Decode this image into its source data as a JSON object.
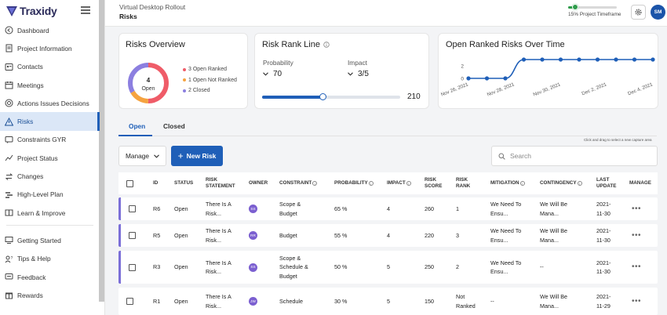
{
  "app": {
    "name": "Traxidy"
  },
  "sidebar": {
    "items": [
      {
        "label": "Dashboard",
        "icon": "dashboard-icon"
      },
      {
        "label": "Project Information",
        "icon": "document-icon"
      },
      {
        "label": "Contacts",
        "icon": "contacts-icon"
      },
      {
        "label": "Meetings",
        "icon": "calendar-icon"
      },
      {
        "label": "Actions Issues Decisions",
        "icon": "target-icon"
      },
      {
        "label": "Risks",
        "icon": "warning-icon",
        "active": true
      },
      {
        "label": "Constraints GYR",
        "icon": "chat-icon"
      },
      {
        "label": "Project Status",
        "icon": "chart-icon"
      },
      {
        "label": "Changes",
        "icon": "swap-icon"
      },
      {
        "label": "High-Level Plan",
        "icon": "plan-icon"
      },
      {
        "label": "Learn & Improve",
        "icon": "book-icon"
      }
    ],
    "bottom_items": [
      {
        "label": "Getting Started",
        "icon": "display-icon"
      },
      {
        "label": "Tips & Help",
        "icon": "help-icon"
      },
      {
        "label": "Feedback",
        "icon": "feedback-icon"
      },
      {
        "label": "Rewards",
        "icon": "gift-icon"
      }
    ]
  },
  "header": {
    "project": "Virtual Desktop Rollout",
    "page": "Risks",
    "timeframe_label": "15% Project Timeframe",
    "timeframe_fraction": 0.15,
    "avatar_initials": "SM"
  },
  "risks_overview": {
    "title": "Risks Overview",
    "center_count": "4",
    "center_label": "Open",
    "legend": [
      {
        "label": "3 Open Ranked",
        "color": "#ef5c68",
        "value": 3
      },
      {
        "label": "1 Open Not Ranked",
        "color": "#f5a340",
        "value": 1
      },
      {
        "label": "2 Closed",
        "color": "#8c7fe0",
        "value": 2
      }
    ]
  },
  "risk_rank_line": {
    "title": "Risk Rank Line",
    "probability_label": "Probability",
    "probability_value": "70",
    "impact_label": "Impact",
    "impact_value": "3/5",
    "slider_value": "210",
    "slider_fraction": 0.44
  },
  "chart_data": {
    "type": "line",
    "title": "Open Ranked Risks Over Time",
    "x_ticks": [
      "Nov 26, 2021",
      "Nov 28, 2021",
      "Nov 30, 2021",
      "Dec 2, 2021",
      "Dec 4, 2021"
    ],
    "y_ticks": [
      0,
      2
    ],
    "ylim": [
      0,
      3
    ],
    "values": [
      0,
      0,
      0,
      3,
      3,
      3,
      3,
      3,
      3,
      3,
      3
    ],
    "color": "#1f5fb8"
  },
  "tabs": [
    {
      "label": "Open",
      "active": true
    },
    {
      "label": "Closed",
      "active": false
    }
  ],
  "capture_hint": "Click and drag to select a new capture area",
  "toolbar": {
    "manage_label": "Manage",
    "new_risk_label": "New Risk",
    "search_placeholder": "Search"
  },
  "table": {
    "headers": {
      "id": "ID",
      "status": "STATUS",
      "statement": "RISK STATEMENT",
      "owner": "OWNER",
      "constraint": "CONSTRAINT",
      "probability": "PROBABILITY",
      "impact": "IMPACT",
      "score": "RISK SCORE",
      "rank": "RISK RANK",
      "mitigation": "MITIGATION",
      "contingency": "CONTINGENCY",
      "last_update": "LAST UPDATE",
      "manage": "MANAGE"
    },
    "rows": [
      {
        "id": "R6",
        "status": "Open",
        "statement": "There Is A Risk...",
        "owner": "SS",
        "constraint": "Scope & Budget",
        "probability": "65 %",
        "impact": "4",
        "score": "260",
        "rank": "1",
        "mitigation": "We Need To Ensu...",
        "contingency": "We Will Be Mana...",
        "last_update": "2021-11-30",
        "manage": "•••"
      },
      {
        "id": "R5",
        "status": "Open",
        "statement": "There Is A Risk...",
        "owner": "RR",
        "constraint": "Budget",
        "probability": "55 %",
        "impact": "4",
        "score": "220",
        "rank": "3",
        "mitigation": "We Need To Ensu...",
        "contingency": "We Will Be Mana...",
        "last_update": "2021-11-30",
        "manage": "•••"
      },
      {
        "id": "R3",
        "status": "Open",
        "statement": "There Is A Risk...",
        "owner": "SS",
        "constraint": "Scope & Schedule & Budget",
        "probability": "50 %",
        "impact": "5",
        "score": "250",
        "rank": "2",
        "mitigation": "We Need To Ensu...",
        "contingency": "--",
        "last_update": "2021-11-30",
        "manage": "•••"
      },
      {
        "id": "R1",
        "status": "Open",
        "statement": "There Is A Risk...",
        "owner": "JW",
        "constraint": "Schedule",
        "probability": "30 %",
        "impact": "5",
        "score": "150",
        "rank": "Not Ranked",
        "mitigation": "--",
        "contingency": "We Will Be Mana...",
        "last_update": "2021-11-29",
        "manage": "•••"
      }
    ]
  }
}
